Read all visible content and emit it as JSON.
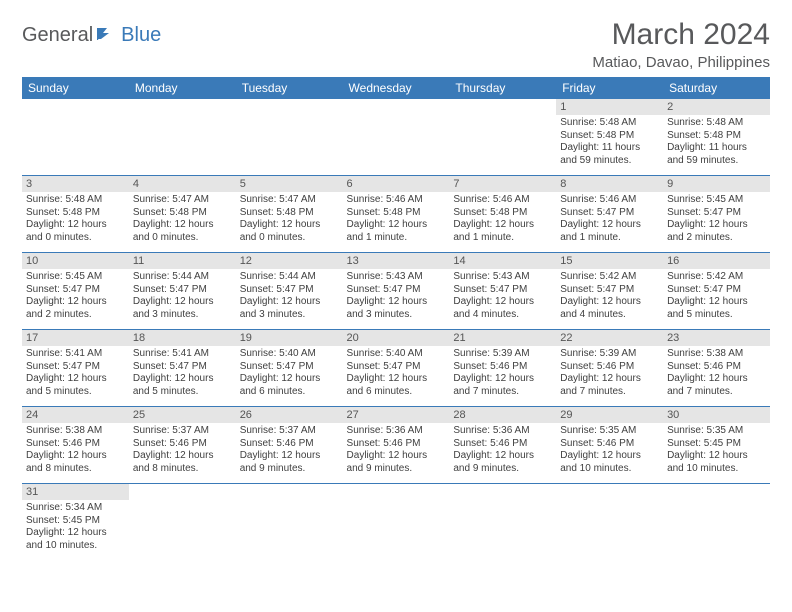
{
  "logo": {
    "word1": "General",
    "word2": "Blue"
  },
  "title": "March 2024",
  "location": "Matiao, Davao, Philippines",
  "colors": {
    "header_bg": "#3a7ab8",
    "header_text": "#ffffff",
    "daynum_bg": "#e5e5e5",
    "text": "#404040",
    "title_color": "#58595b",
    "rule": "#3a7ab8"
  },
  "daynames": [
    "Sunday",
    "Monday",
    "Tuesday",
    "Wednesday",
    "Thursday",
    "Friday",
    "Saturday"
  ],
  "weeks": [
    [
      null,
      null,
      null,
      null,
      null,
      {
        "n": "1",
        "sr": "Sunrise: 5:48 AM",
        "ss": "Sunset: 5:48 PM",
        "dl": "Daylight: 11 hours and 59 minutes."
      },
      {
        "n": "2",
        "sr": "Sunrise: 5:48 AM",
        "ss": "Sunset: 5:48 PM",
        "dl": "Daylight: 11 hours and 59 minutes."
      }
    ],
    [
      {
        "n": "3",
        "sr": "Sunrise: 5:48 AM",
        "ss": "Sunset: 5:48 PM",
        "dl": "Daylight: 12 hours and 0 minutes."
      },
      {
        "n": "4",
        "sr": "Sunrise: 5:47 AM",
        "ss": "Sunset: 5:48 PM",
        "dl": "Daylight: 12 hours and 0 minutes."
      },
      {
        "n": "5",
        "sr": "Sunrise: 5:47 AM",
        "ss": "Sunset: 5:48 PM",
        "dl": "Daylight: 12 hours and 0 minutes."
      },
      {
        "n": "6",
        "sr": "Sunrise: 5:46 AM",
        "ss": "Sunset: 5:48 PM",
        "dl": "Daylight: 12 hours and 1 minute."
      },
      {
        "n": "7",
        "sr": "Sunrise: 5:46 AM",
        "ss": "Sunset: 5:48 PM",
        "dl": "Daylight: 12 hours and 1 minute."
      },
      {
        "n": "8",
        "sr": "Sunrise: 5:46 AM",
        "ss": "Sunset: 5:47 PM",
        "dl": "Daylight: 12 hours and 1 minute."
      },
      {
        "n": "9",
        "sr": "Sunrise: 5:45 AM",
        "ss": "Sunset: 5:47 PM",
        "dl": "Daylight: 12 hours and 2 minutes."
      }
    ],
    [
      {
        "n": "10",
        "sr": "Sunrise: 5:45 AM",
        "ss": "Sunset: 5:47 PM",
        "dl": "Daylight: 12 hours and 2 minutes."
      },
      {
        "n": "11",
        "sr": "Sunrise: 5:44 AM",
        "ss": "Sunset: 5:47 PM",
        "dl": "Daylight: 12 hours and 3 minutes."
      },
      {
        "n": "12",
        "sr": "Sunrise: 5:44 AM",
        "ss": "Sunset: 5:47 PM",
        "dl": "Daylight: 12 hours and 3 minutes."
      },
      {
        "n": "13",
        "sr": "Sunrise: 5:43 AM",
        "ss": "Sunset: 5:47 PM",
        "dl": "Daylight: 12 hours and 3 minutes."
      },
      {
        "n": "14",
        "sr": "Sunrise: 5:43 AM",
        "ss": "Sunset: 5:47 PM",
        "dl": "Daylight: 12 hours and 4 minutes."
      },
      {
        "n": "15",
        "sr": "Sunrise: 5:42 AM",
        "ss": "Sunset: 5:47 PM",
        "dl": "Daylight: 12 hours and 4 minutes."
      },
      {
        "n": "16",
        "sr": "Sunrise: 5:42 AM",
        "ss": "Sunset: 5:47 PM",
        "dl": "Daylight: 12 hours and 5 minutes."
      }
    ],
    [
      {
        "n": "17",
        "sr": "Sunrise: 5:41 AM",
        "ss": "Sunset: 5:47 PM",
        "dl": "Daylight: 12 hours and 5 minutes."
      },
      {
        "n": "18",
        "sr": "Sunrise: 5:41 AM",
        "ss": "Sunset: 5:47 PM",
        "dl": "Daylight: 12 hours and 5 minutes."
      },
      {
        "n": "19",
        "sr": "Sunrise: 5:40 AM",
        "ss": "Sunset: 5:47 PM",
        "dl": "Daylight: 12 hours and 6 minutes."
      },
      {
        "n": "20",
        "sr": "Sunrise: 5:40 AM",
        "ss": "Sunset: 5:47 PM",
        "dl": "Daylight: 12 hours and 6 minutes."
      },
      {
        "n": "21",
        "sr": "Sunrise: 5:39 AM",
        "ss": "Sunset: 5:46 PM",
        "dl": "Daylight: 12 hours and 7 minutes."
      },
      {
        "n": "22",
        "sr": "Sunrise: 5:39 AM",
        "ss": "Sunset: 5:46 PM",
        "dl": "Daylight: 12 hours and 7 minutes."
      },
      {
        "n": "23",
        "sr": "Sunrise: 5:38 AM",
        "ss": "Sunset: 5:46 PM",
        "dl": "Daylight: 12 hours and 7 minutes."
      }
    ],
    [
      {
        "n": "24",
        "sr": "Sunrise: 5:38 AM",
        "ss": "Sunset: 5:46 PM",
        "dl": "Daylight: 12 hours and 8 minutes."
      },
      {
        "n": "25",
        "sr": "Sunrise: 5:37 AM",
        "ss": "Sunset: 5:46 PM",
        "dl": "Daylight: 12 hours and 8 minutes."
      },
      {
        "n": "26",
        "sr": "Sunrise: 5:37 AM",
        "ss": "Sunset: 5:46 PM",
        "dl": "Daylight: 12 hours and 9 minutes."
      },
      {
        "n": "27",
        "sr": "Sunrise: 5:36 AM",
        "ss": "Sunset: 5:46 PM",
        "dl": "Daylight: 12 hours and 9 minutes."
      },
      {
        "n": "28",
        "sr": "Sunrise: 5:36 AM",
        "ss": "Sunset: 5:46 PM",
        "dl": "Daylight: 12 hours and 9 minutes."
      },
      {
        "n": "29",
        "sr": "Sunrise: 5:35 AM",
        "ss": "Sunset: 5:46 PM",
        "dl": "Daylight: 12 hours and 10 minutes."
      },
      {
        "n": "30",
        "sr": "Sunrise: 5:35 AM",
        "ss": "Sunset: 5:45 PM",
        "dl": "Daylight: 12 hours and 10 minutes."
      }
    ],
    [
      {
        "n": "31",
        "sr": "Sunrise: 5:34 AM",
        "ss": "Sunset: 5:45 PM",
        "dl": "Daylight: 12 hours and 10 minutes."
      },
      null,
      null,
      null,
      null,
      null,
      null
    ]
  ]
}
